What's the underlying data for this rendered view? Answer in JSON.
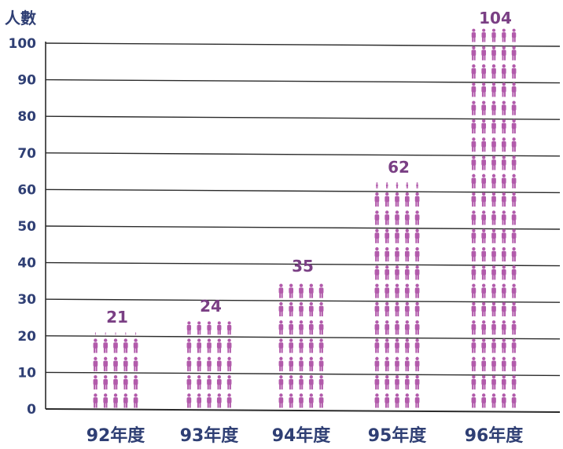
{
  "colors": {
    "bar": "#b25bab",
    "text": "#2f3f74",
    "value_label": "#7a3f84",
    "grid": "#2b2b2b"
  },
  "icon": "person-icon",
  "chart_data": {
    "type": "bar",
    "title": "",
    "ylabel": "人數",
    "xlabel": "",
    "categories": [
      "92年度",
      "93年度",
      "94年度",
      "95年度",
      "96年度"
    ],
    "values": [
      21,
      24,
      35,
      62,
      104
    ],
    "data_labels": [
      "21",
      "24",
      "35",
      "62",
      "104"
    ],
    "ylim": [
      0,
      100
    ],
    "yticks": [
      "0",
      "10",
      "20",
      "30",
      "40",
      "50",
      "60",
      "70",
      "80",
      "90",
      "100"
    ],
    "grid": true,
    "mark": "pictograph-person"
  }
}
